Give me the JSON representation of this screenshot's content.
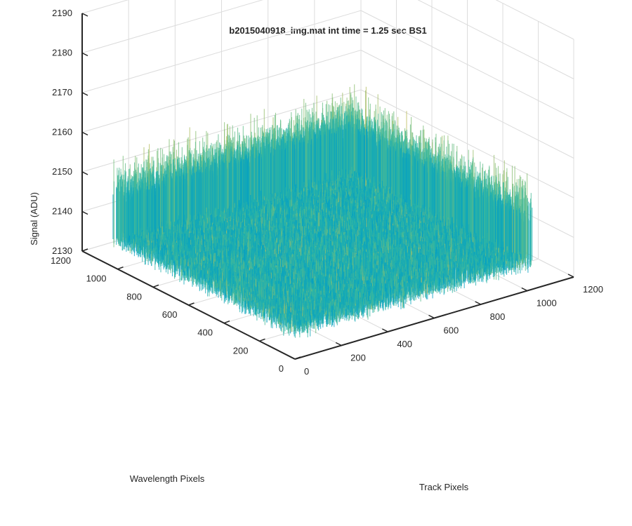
{
  "chart_data": {
    "type": "surface",
    "title": "b2015040918_img.mat int time = 1.25 sec   BS1",
    "xlabel": "Track Pixels",
    "ylabel": "Wavelength Pixels",
    "zlabel": "Signal (ADU)",
    "xlim": [
      0,
      1200
    ],
    "ylim": [
      0,
      1200
    ],
    "zlim": [
      2130,
      2190
    ],
    "xticks": [
      "0",
      "200",
      "400",
      "600",
      "800",
      "1000",
      "1200"
    ],
    "yticks": [
      "0",
      "200",
      "400",
      "600",
      "800",
      "1000",
      "1200"
    ],
    "zticks": [
      "2130",
      "2140",
      "2150",
      "2160",
      "2170",
      "2180",
      "2190"
    ],
    "data_extent": {
      "x": [
        0,
        1024
      ],
      "y": [
        0,
        1024
      ]
    },
    "signal_mean": 2146,
    "signal_std": 4,
    "signal_range": [
      2133,
      2178
    ],
    "colormap": "parula",
    "grid": "on"
  }
}
